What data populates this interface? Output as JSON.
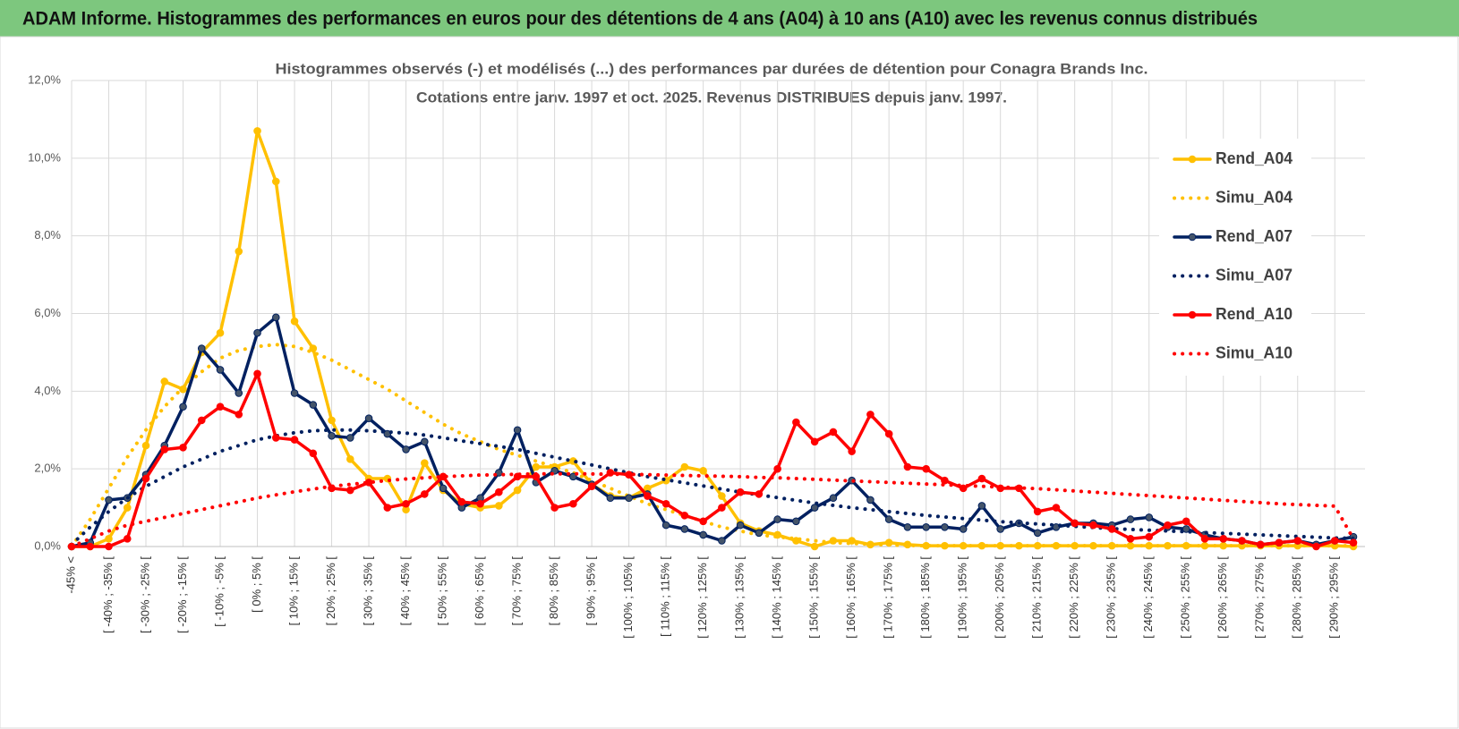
{
  "header": {
    "title": "ADAM Informe. Histogrammes des performances en euros pour des détentions de 4 ans (A04) à 10 ans (A10) avec les revenus connus distribués"
  },
  "chart_data": {
    "type": "line",
    "title": "Histogrammes observés (-) et modélisés (...) des performances par durées de détention pour Conagra Brands Inc.",
    "subtitle": "Cotations entre janv. 1997 et oct. 2025.  Revenus DISTRIBUES depuis janv. 1997.",
    "categories": [
      "-45% <",
      null,
      "[ -40% ; -35% [",
      null,
      "[ -30% ; -25% [",
      null,
      "[ -20% ; -15% [",
      null,
      "[ -10% ; -5% [",
      null,
      "[ 0% ; 5% [",
      null,
      "[ 10% ; 15% [",
      null,
      "[ 20% ; 25% [",
      null,
      "[ 30% ; 35% [",
      null,
      "[ 40% ; 45% [",
      null,
      "[ 50% ; 55% [",
      null,
      "[ 60% ; 65% [",
      null,
      "[ 70% ; 75% [",
      null,
      "[ 80% ; 85% [",
      null,
      "[ 90% ; 95% [",
      null,
      "[ 100% ; 105% [",
      null,
      "[ 110% ; 115% [",
      null,
      "[ 120% ; 125% [",
      null,
      "[ 130% ; 135% [",
      null,
      "[ 140% ; 145% [",
      null,
      "[ 150% ; 155% [",
      null,
      "[ 160% ; 165% [",
      null,
      "[ 170% ; 175% [",
      null,
      "[ 180% ; 185% [",
      null,
      "[ 190% ; 195% [",
      null,
      "[ 200% ; 205% [",
      null,
      "[ 210% ; 215% [",
      null,
      "[ 220% ; 225% [",
      null,
      "[ 230% ; 235% [",
      null,
      "[ 240% ; 245% [",
      null,
      "[ 250% ; 255% [",
      null,
      "[ 260% ; 265% [",
      null,
      "[ 270% ; 275% [",
      null,
      "[ 280% ; 285% [",
      null,
      "[ 290% ; 295% [",
      null
    ],
    "series": [
      {
        "name": "Rend_A04",
        "color": "#ffc000",
        "line_style": "solid",
        "marker": true,
        "values": [
          0,
          0,
          0.2,
          1.0,
          2.6,
          4.25,
          4.05,
          5.0,
          5.5,
          7.6,
          10.7,
          9.4,
          5.8,
          5.1,
          3.25,
          2.25,
          1.75,
          1.75,
          0.95,
          2.15,
          1.45,
          1.1,
          1.0,
          1.05,
          1.45,
          2.05,
          2.05,
          2.2,
          1.6,
          1.3,
          1.25,
          1.5,
          1.7,
          2.05,
          1.95,
          1.3,
          0.6,
          0.4,
          0.3,
          0.15,
          0,
          0.15,
          0.15,
          0.05,
          0.1,
          0.05,
          0.02,
          0.02,
          0.02,
          0.02,
          0.02,
          0.02,
          0.02,
          0.02,
          0.02,
          0.02,
          0.02,
          0.02,
          0.02,
          0.02,
          0.02,
          0.02,
          0.02,
          0.02,
          0.02,
          0.02,
          0.02,
          0.02,
          0.02,
          0
        ]
      },
      {
        "name": "Simu_A04",
        "color": "#ffc000",
        "line_style": "dotted",
        "marker": false,
        "values": [
          0,
          0.7,
          1.5,
          2.3,
          3.0,
          3.6,
          4.1,
          4.5,
          4.85,
          5.05,
          5.15,
          5.2,
          5.15,
          5.0,
          4.8,
          4.55,
          4.3,
          4.05,
          3.75,
          3.45,
          3.15,
          2.9,
          2.7,
          2.5,
          2.35,
          2.2,
          2.05,
          1.9,
          1.7,
          1.5,
          1.3,
          1.1,
          0.95,
          0.8,
          0.65,
          0.5,
          0.4,
          0.3,
          0.25,
          0.2,
          0.15,
          0.1,
          0.08,
          0.06,
          0.04,
          0.03,
          0.02,
          0.02,
          0.02,
          0.02,
          0.02,
          0.02,
          0.02,
          0.02,
          0.02,
          0.02,
          0.02,
          0.02,
          0.02,
          0.02,
          0.02,
          0.02,
          0.02,
          0.02,
          0.02,
          0.02,
          0.02,
          0.02,
          0.02,
          0.02
        ]
      },
      {
        "name": "Rend_A07",
        "color": "#002060",
        "line_style": "solid",
        "marker": true,
        "values": [
          0,
          0.1,
          1.2,
          1.25,
          1.85,
          2.6,
          3.6,
          5.1,
          4.55,
          3.95,
          5.5,
          5.9,
          3.95,
          3.65,
          2.85,
          2.8,
          3.3,
          2.9,
          2.5,
          2.7,
          1.5,
          1.0,
          1.25,
          1.9,
          3.0,
          1.65,
          1.95,
          1.8,
          1.6,
          1.25,
          1.25,
          1.35,
          0.55,
          0.45,
          0.3,
          0.15,
          0.55,
          0.35,
          0.7,
          0.65,
          1.0,
          1.25,
          1.7,
          1.2,
          0.7,
          0.5,
          0.5,
          0.5,
          0.45,
          1.05,
          0.45,
          0.6,
          0.35,
          0.5,
          0.6,
          0.6,
          0.55,
          0.7,
          0.75,
          0.5,
          0.45,
          0.3,
          0.2,
          0.15,
          0.05,
          0.1,
          0.15,
          0.05,
          0.15,
          0.25
        ]
      },
      {
        "name": "Simu_A07",
        "color": "#002060",
        "line_style": "dotted",
        "marker": false,
        "values": [
          0.05,
          0.5,
          0.9,
          1.25,
          1.55,
          1.8,
          2.05,
          2.25,
          2.45,
          2.6,
          2.75,
          2.85,
          2.93,
          2.98,
          3.0,
          3.0,
          2.98,
          2.95,
          2.92,
          2.87,
          2.8,
          2.72,
          2.65,
          2.58,
          2.5,
          2.4,
          2.3,
          2.2,
          2.1,
          2.0,
          1.9,
          1.8,
          1.72,
          1.64,
          1.56,
          1.48,
          1.4,
          1.33,
          1.26,
          1.19,
          1.12,
          1.06,
          1.0,
          0.95,
          0.9,
          0.85,
          0.8,
          0.76,
          0.72,
          0.68,
          0.64,
          0.61,
          0.58,
          0.55,
          0.52,
          0.49,
          0.46,
          0.44,
          0.42,
          0.4,
          0.38,
          0.36,
          0.34,
          0.32,
          0.3,
          0.28,
          0.26,
          0.24,
          0.22,
          0.21
        ]
      },
      {
        "name": "Rend_A10",
        "color": "#ff0000",
        "line_style": "solid",
        "marker": true,
        "values": [
          0,
          0,
          0,
          0.2,
          1.75,
          2.5,
          2.55,
          3.25,
          3.6,
          3.4,
          4.45,
          2.8,
          2.75,
          2.4,
          1.5,
          1.45,
          1.65,
          1.0,
          1.1,
          1.35,
          1.8,
          1.15,
          1.1,
          1.4,
          1.8,
          1.8,
          1.0,
          1.1,
          1.55,
          1.9,
          1.85,
          1.3,
          1.1,
          0.8,
          0.65,
          1.0,
          1.4,
          1.35,
          2.0,
          3.2,
          2.7,
          2.95,
          2.45,
          3.4,
          2.9,
          2.05,
          2.0,
          1.7,
          1.5,
          1.75,
          1.5,
          1.5,
          0.9,
          1.0,
          0.6,
          0.55,
          0.45,
          0.2,
          0.25,
          0.55,
          0.65,
          0.2,
          0.2,
          0.15,
          0.05,
          0.1,
          0.15,
          0,
          0.15,
          0.1
        ]
      },
      {
        "name": "Simu_A10",
        "color": "#ff0000",
        "line_style": "dotted",
        "marker": false,
        "values": [
          0,
          0.2,
          0.4,
          0.55,
          0.65,
          0.75,
          0.85,
          0.95,
          1.05,
          1.15,
          1.25,
          1.33,
          1.41,
          1.48,
          1.55,
          1.6,
          1.65,
          1.7,
          1.74,
          1.77,
          1.8,
          1.82,
          1.84,
          1.85,
          1.86,
          1.87,
          1.87,
          1.87,
          1.87,
          1.86,
          1.86,
          1.85,
          1.84,
          1.83,
          1.82,
          1.81,
          1.8,
          1.78,
          1.77,
          1.75,
          1.73,
          1.71,
          1.69,
          1.67,
          1.65,
          1.63,
          1.61,
          1.59,
          1.57,
          1.55,
          1.53,
          1.51,
          1.49,
          1.46,
          1.43,
          1.4,
          1.37,
          1.34,
          1.31,
          1.28,
          1.25,
          1.22,
          1.19,
          1.16,
          1.13,
          1.1,
          1.08,
          1.06,
          1.04,
          0.2
        ]
      }
    ],
    "ylim": [
      0,
      12
    ],
    "yticks": [
      {
        "value": 0,
        "label": "0,0%"
      },
      {
        "value": 2,
        "label": "2,0%"
      },
      {
        "value": 4,
        "label": "4,0%"
      },
      {
        "value": 6,
        "label": "6,0%"
      },
      {
        "value": 8,
        "label": "8,0%"
      },
      {
        "value": 10,
        "label": "10,0%"
      },
      {
        "value": 12,
        "label": "12,0%"
      }
    ],
    "grid": true,
    "legend": "right"
  }
}
